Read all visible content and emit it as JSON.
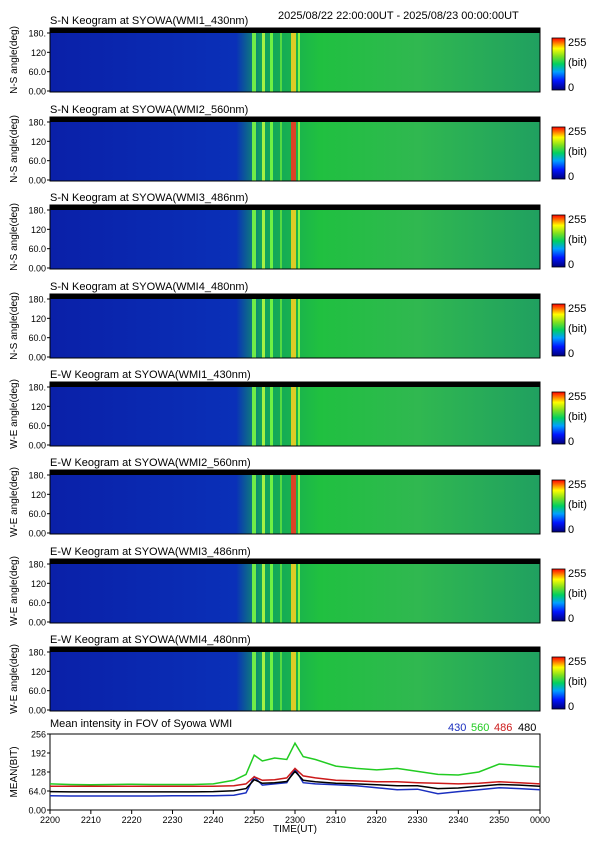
{
  "header": {
    "date_range": "2025/08/22 22:00:00UT - 2025/08/23 00:00:00UT"
  },
  "colorbar": {
    "max_label": "255",
    "unit_label": "(bit)",
    "min_label": "0"
  },
  "panels": [
    {
      "title": "S-N Keogram at SYOWA(WMI1_430nm)",
      "ylabel": "N-S angle(deg)",
      "yticks": [
        "180.",
        "120",
        "60.0",
        "0.00"
      ]
    },
    {
      "title": "S-N Keogram at SYOWA(WMI2_560nm)",
      "ylabel": "N-S angle(deg)",
      "yticks": [
        "180.",
        "120",
        "60.0",
        "0.00"
      ]
    },
    {
      "title": "S-N Keogram at SYOWA(WMI3_486nm)",
      "ylabel": "N-S angle(deg)",
      "yticks": [
        "180.",
        "120",
        "60.0",
        "0.00"
      ]
    },
    {
      "title": "S-N Keogram at SYOWA(WMI4_480nm)",
      "ylabel": "N-S angle(deg)",
      "yticks": [
        "180.",
        "120",
        "60.0",
        "0.00"
      ]
    },
    {
      "title": "E-W Keogram at SYOWA(WMI1_430nm)",
      "ylabel": "W-E angle(deg)",
      "yticks": [
        "180.",
        "120",
        "60.0",
        "0.00"
      ]
    },
    {
      "title": "E-W Keogram at SYOWA(WMI2_560nm)",
      "ylabel": "W-E angle(deg)",
      "yticks": [
        "180.",
        "120",
        "60.0",
        "0.00"
      ]
    },
    {
      "title": "E-W Keogram at SYOWA(WMI3_486nm)",
      "ylabel": "W-E angle(deg)",
      "yticks": [
        "180.",
        "120",
        "60.0",
        "0.00"
      ]
    },
    {
      "title": "E-W Keogram at SYOWA(WMI4_480nm)",
      "ylabel": "W-E angle(deg)",
      "yticks": [
        "180.",
        "120",
        "60.0",
        "0.00"
      ]
    }
  ],
  "chart_data": {
    "type": "line",
    "title": "Mean intensity in FOV of Syowa WMI",
    "xlabel": "TIME(UT)",
    "ylabel": "MEAN(BIT)",
    "ylim": [
      0,
      256
    ],
    "yticks": [
      "0.00",
      "64.0",
      "128",
      "192",
      "256"
    ],
    "x": [
      "2200",
      "2205",
      "2210",
      "2215",
      "2220",
      "2225",
      "2230",
      "2235",
      "2240",
      "2245",
      "2248",
      "2250",
      "2252",
      "2255",
      "2258",
      "2300",
      "2302",
      "2305",
      "2310",
      "2315",
      "2320",
      "2325",
      "2330",
      "2335",
      "2340",
      "2345",
      "2350",
      "2355",
      "0000"
    ],
    "xticks": [
      "2200",
      "2210",
      "2220",
      "2230",
      "2240",
      "2250",
      "2300",
      "2310",
      "2320",
      "2330",
      "2340",
      "2350",
      "0000"
    ],
    "series": [
      {
        "name": "430",
        "color": "#1a2fbf",
        "values": [
          48,
          47,
          47,
          47,
          47,
          47,
          48,
          48,
          48,
          50,
          58,
          112,
          84,
          88,
          92,
          138,
          92,
          88,
          85,
          82,
          75,
          68,
          70,
          55,
          62,
          68,
          75,
          72,
          68
        ]
      },
      {
        "name": "560",
        "color": "#22cc22",
        "values": [
          88,
          86,
          85,
          86,
          87,
          86,
          86,
          86,
          88,
          100,
          120,
          185,
          165,
          175,
          170,
          225,
          180,
          170,
          148,
          140,
          135,
          140,
          130,
          120,
          118,
          128,
          155,
          150,
          145
        ]
      },
      {
        "name": "486",
        "color": "#cc1a1a",
        "values": [
          80,
          80,
          80,
          80,
          80,
          80,
          80,
          80,
          80,
          82,
          88,
          112,
          100,
          102,
          108,
          140,
          115,
          108,
          100,
          98,
          95,
          95,
          92,
          90,
          88,
          90,
          95,
          92,
          88
        ]
      },
      {
        "name": "480",
        "color": "#000000",
        "values": [
          62,
          61,
          61,
          61,
          61,
          61,
          61,
          61,
          62,
          65,
          72,
          102,
          90,
          92,
          96,
          130,
          100,
          95,
          90,
          88,
          85,
          82,
          82,
          72,
          74,
          80,
          86,
          84,
          80
        ]
      }
    ]
  }
}
